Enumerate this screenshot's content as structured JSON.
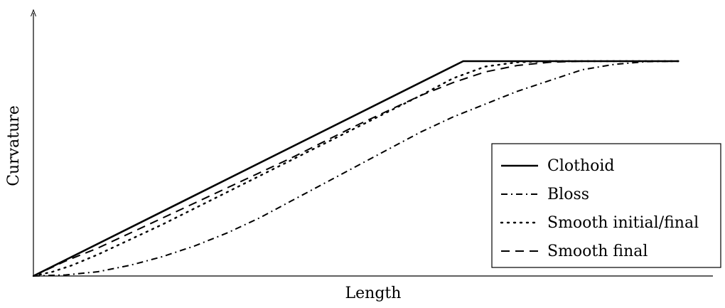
{
  "chart_data": {
    "type": "line",
    "xlabel": "Length",
    "ylabel": "Curvature",
    "xlim": [
      0,
      1
    ],
    "ylim": [
      0,
      1
    ],
    "ticks": false,
    "grid": false,
    "legend_position": "bottom-right",
    "series": [
      {
        "name": "Clothoid",
        "style": "solid",
        "color": "#000000",
        "points": [
          [
            0,
            0
          ],
          [
            0.666,
            1
          ],
          [
            1,
            1
          ]
        ]
      },
      {
        "name": "Bloss",
        "style": "dashdot",
        "color": "#000000",
        "points": [
          [
            0,
            0
          ],
          [
            0.05,
            0.005
          ],
          [
            0.1,
            0.02
          ],
          [
            0.15,
            0.05
          ],
          [
            0.2,
            0.09
          ],
          [
            0.25,
            0.14
          ],
          [
            0.3,
            0.2
          ],
          [
            0.35,
            0.27
          ],
          [
            0.4,
            0.35
          ],
          [
            0.45,
            0.43
          ],
          [
            0.5,
            0.51
          ],
          [
            0.55,
            0.59
          ],
          [
            0.6,
            0.67
          ],
          [
            0.65,
            0.74
          ],
          [
            0.7,
            0.8
          ],
          [
            0.75,
            0.86
          ],
          [
            0.8,
            0.91
          ],
          [
            0.85,
            0.96
          ],
          [
            0.9,
            0.985
          ],
          [
            0.95,
            0.998
          ],
          [
            1,
            1
          ]
        ]
      },
      {
        "name": "Smooth initial/final",
        "style": "dotted",
        "color": "#000000",
        "points": [
          [
            0,
            0
          ],
          [
            0.03,
            0.02
          ],
          [
            0.06,
            0.05
          ],
          [
            0.1,
            0.1
          ],
          [
            0.15,
            0.17
          ],
          [
            0.2,
            0.24
          ],
          [
            0.3,
            0.39
          ],
          [
            0.4,
            0.54
          ],
          [
            0.5,
            0.69
          ],
          [
            0.6,
            0.84
          ],
          [
            0.65,
            0.92
          ],
          [
            0.7,
            0.975
          ],
          [
            0.75,
            0.995
          ],
          [
            0.8,
            1
          ],
          [
            1,
            1
          ]
        ]
      },
      {
        "name": "Smooth final",
        "style": "dashed",
        "color": "#000000",
        "points": [
          [
            0,
            0
          ],
          [
            0.05,
            0.07
          ],
          [
            0.1,
            0.13
          ],
          [
            0.2,
            0.27
          ],
          [
            0.3,
            0.41
          ],
          [
            0.4,
            0.55
          ],
          [
            0.5,
            0.7
          ],
          [
            0.6,
            0.84
          ],
          [
            0.65,
            0.9
          ],
          [
            0.7,
            0.95
          ],
          [
            0.75,
            0.98
          ],
          [
            0.8,
            0.995
          ],
          [
            0.85,
            1
          ],
          [
            1,
            1
          ]
        ]
      }
    ]
  }
}
